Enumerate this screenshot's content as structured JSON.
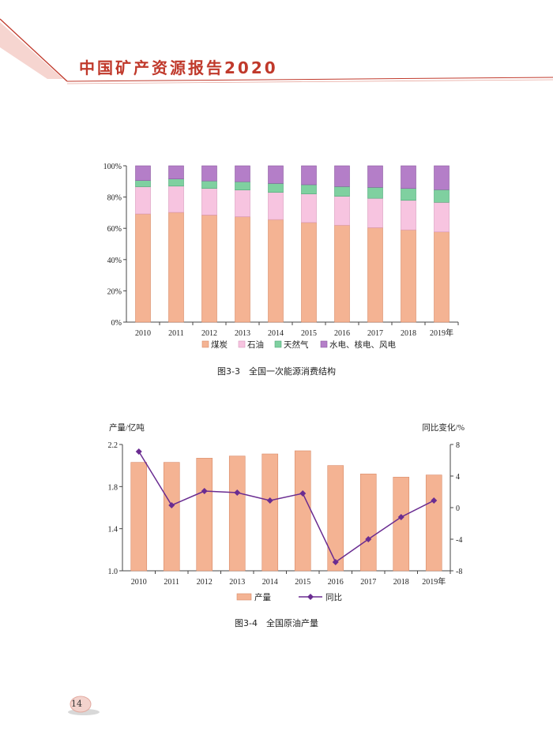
{
  "header": {
    "title": "中国矿产资源报告2020"
  },
  "page_number": "14",
  "colors": {
    "accent": "#c0392b",
    "coal": "#f4b393",
    "oil": "#f7c4e0",
    "gas": "#7fd0a0",
    "renewables": "#b47ec8",
    "production": "#f4b393",
    "yoy": "#6a2c91"
  },
  "chart_data": [
    {
      "type": "bar",
      "stacked": true,
      "title": "",
      "caption": "图3-3　全国一次能源消费结构",
      "categories": [
        "2010",
        "2011",
        "2012",
        "2013",
        "2014",
        "2015",
        "2016",
        "2017",
        "2018",
        "2019年"
      ],
      "series": [
        {
          "name": "煤炭",
          "values": [
            69.2,
            70.2,
            68.5,
            67.4,
            65.6,
            63.7,
            62.0,
            60.4,
            59.0,
            57.7
          ]
        },
        {
          "name": "石油",
          "values": [
            17.4,
            16.8,
            17.0,
            17.1,
            17.4,
            18.3,
            18.5,
            18.8,
            18.9,
            18.9
          ]
        },
        {
          "name": "天然气",
          "values": [
            4.0,
            4.6,
            4.8,
            5.3,
            5.7,
            5.9,
            6.2,
            7.0,
            7.6,
            8.1
          ]
        },
        {
          "name": "水电、核电、风电",
          "values": [
            9.4,
            8.4,
            9.7,
            10.2,
            11.3,
            12.1,
            13.3,
            13.8,
            14.5,
            15.3
          ]
        }
      ],
      "ylim": [
        0,
        100
      ],
      "yticks": [
        "0%",
        "20%",
        "40%",
        "60%",
        "80%",
        "100%"
      ],
      "grid": false,
      "legend": "bottom"
    },
    {
      "type": "bar",
      "title": "",
      "caption": "图3-4　全国原油产量",
      "categories": [
        "2010",
        "2011",
        "2012",
        "2013",
        "2014",
        "2015",
        "2016",
        "2017",
        "2018",
        "2019年"
      ],
      "ylabel": "产量/亿吨",
      "y2label": "同比变化/%",
      "series": [
        {
          "name": "产量",
          "type": "bar",
          "axis": "left",
          "values": [
            2.03,
            2.03,
            2.07,
            2.09,
            2.11,
            2.14,
            2.0,
            1.92,
            1.89,
            1.91
          ]
        },
        {
          "name": "同比",
          "type": "line",
          "axis": "right",
          "values": [
            7.1,
            0.3,
            2.1,
            1.9,
            0.9,
            1.8,
            -6.9,
            -4.0,
            -1.2,
            0.9
          ]
        }
      ],
      "ylim": [
        1.0,
        2.2
      ],
      "yticks": [
        "1.0",
        "1.4",
        "1.8",
        "2.2"
      ],
      "y2lim": [
        -8,
        8
      ],
      "y2ticks": [
        "-8",
        "-4",
        "0",
        "4",
        "8"
      ],
      "grid": false,
      "legend": "bottom"
    }
  ]
}
